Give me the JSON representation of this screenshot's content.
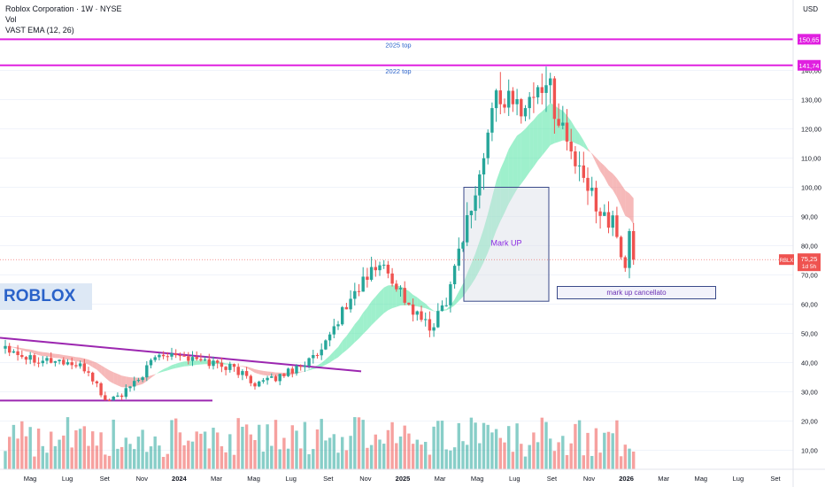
{
  "header": {
    "title": "Roblox Corporation · 1W · NYSE",
    "indicator_vol": "Vol",
    "indicator_ema": "VAST EMA (12, 26)",
    "currency": "USD"
  },
  "watermark": "ROBLOX",
  "colors": {
    "up": "#26a69a",
    "down": "#ef5350",
    "magenta": "#e020e0",
    "trendline": "#9c27b0",
    "band_up": "#4fe3a3",
    "band_down": "#ef8080"
  },
  "annotations": {
    "top2025": "2025 top",
    "top2022": "2022 top",
    "markup": "Mark UP",
    "markup_cancelled": "mark up cancellato"
  },
  "price_labels": {
    "top2025": "150,65",
    "top2022": "141,74",
    "last_ticker": "RBLX",
    "last_price": "75,25",
    "countdown": "1d 5h"
  },
  "chart_data": {
    "type": "candlestick",
    "title": "Roblox Corporation · 1W · NYSE",
    "ylim": [
      2,
      160
    ],
    "yticks": [
      "10,00",
      "20,00",
      "30,00",
      "40,00",
      "50,00",
      "60,00",
      "70,00",
      "80,00",
      "90,00",
      "100,00",
      "110,00",
      "120,00",
      "130,00",
      "140,00"
    ],
    "xticks": [
      "Mag",
      "Lug",
      "Set",
      "Nov",
      "2024",
      "Mar",
      "Mag",
      "Lug",
      "Set",
      "Nov",
      "2025",
      "Mar",
      "Mag",
      "Lug",
      "Set",
      "Nov",
      "2026",
      "Mar",
      "Mag",
      "Lug",
      "Set"
    ],
    "horizontal_levels": [
      {
        "label": "2025 top",
        "value": 150.65
      },
      {
        "label": "2022 top",
        "value": 141.74
      }
    ],
    "anchors": [
      [
        0,
        46
      ],
      [
        5,
        42
      ],
      [
        10,
        41
      ],
      [
        15,
        40
      ],
      [
        20,
        37
      ],
      [
        24,
        27
      ],
      [
        28,
        29
      ],
      [
        32,
        34
      ],
      [
        36,
        42
      ],
      [
        40,
        44
      ],
      [
        45,
        41
      ],
      [
        50,
        40
      ],
      [
        55,
        38
      ],
      [
        60,
        33
      ],
      [
        64,
        34
      ],
      [
        68,
        37
      ],
      [
        72,
        40
      ],
      [
        76,
        43
      ],
      [
        80,
        55
      ],
      [
        85,
        66
      ],
      [
        90,
        74
      ],
      [
        94,
        67
      ],
      [
        98,
        57
      ],
      [
        100,
        55
      ],
      [
        102,
        51
      ],
      [
        106,
        62
      ],
      [
        110,
        84
      ],
      [
        114,
        103
      ],
      [
        118,
        133
      ],
      [
        122,
        127
      ],
      [
        126,
        130
      ],
      [
        130,
        137
      ],
      [
        134,
        120
      ],
      [
        138,
        104
      ],
      [
        142,
        95
      ],
      [
        146,
        87
      ],
      [
        149,
        73
      ],
      [
        150,
        85
      ],
      [
        151,
        75.25
      ]
    ],
    "last_value": 75.25,
    "indicators": [
      "Vol",
      "VAST EMA (12, 26)"
    ]
  }
}
